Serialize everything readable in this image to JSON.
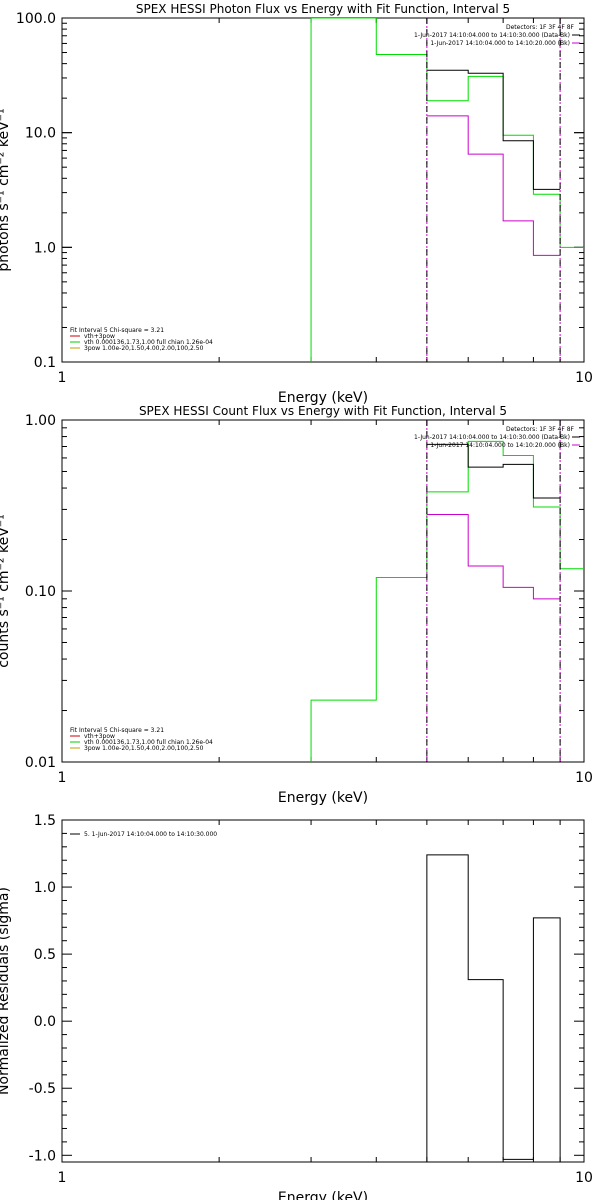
{
  "chart_data": [
    {
      "type": "line",
      "title": "SPEX HESSI Photon Flux vs Energy with Fit Function, Interval 5",
      "xlabel": "Energy (keV)",
      "ylabel": "photons s⁻¹ cm⁻² keV⁻¹",
      "xscale": "log",
      "yscale": "log",
      "xlim": [
        1,
        10
      ],
      "ylim": [
        0.1,
        100
      ],
      "x_ticks": [
        "1",
        "10"
      ],
      "y_ticks": [
        "0.1",
        "1.0",
        "10.0",
        "100.0"
      ],
      "y_tick_values": [
        0.1,
        1,
        10,
        100
      ],
      "legend_right": {
        "header": "Detectors: 1F 3F 4F 8F",
        "entries": [
          {
            "label": "1-Jun-2017 14:10:04.000 to 14:10:30.000 (Data-Bk)",
            "color": "#000000"
          },
          {
            "label": "1-Jun-2017 14:10:04.000 to 14:10:20.000 (Bk)",
            "color": "#cc00cc"
          }
        ]
      },
      "legend_left": {
        "header": "Fit Interval 5   Chi-square = 3.21",
        "entries": [
          {
            "label": "vth+3pow",
            "color": "#cc0000"
          },
          {
            "label": "vth 0.000136,1.73,1.00  full chian 1.26e-04",
            "color": "#00cc00"
          },
          {
            "label": "3pow 1.00e-20,1.50,4.00,2.00,100,2.50",
            "color": "#cc9900"
          }
        ]
      },
      "vlines": [
        5.0,
        9.0
      ],
      "series": [
        {
          "name": "vth",
          "color": "#00dd00",
          "drop_to_bottom": true,
          "edges": [
            3.0,
            4.0,
            5.0,
            6.0,
            7.0,
            8.0,
            9.0,
            10.0
          ],
          "values": [
            120,
            48,
            19,
            31,
            9.5,
            2.9,
            1.0
          ]
        },
        {
          "name": "Data-Bk",
          "color": "#000000",
          "edges": [
            5.0,
            6.0,
            7.0,
            8.0,
            9.0
          ],
          "values": [
            35,
            33,
            8.5,
            3.2
          ]
        },
        {
          "name": "Bk",
          "color": "#cc00cc",
          "edges": [
            5.0,
            6.0,
            7.0,
            8.0,
            9.0
          ],
          "values": [
            14,
            6.5,
            1.7,
            0.85
          ]
        }
      ]
    },
    {
      "type": "line",
      "title": "SPEX HESSI Count Flux vs Energy with Fit Function, Interval 5",
      "xlabel": "Energy (keV)",
      "ylabel": "counts s⁻¹ cm⁻² keV⁻¹",
      "xscale": "log",
      "yscale": "log",
      "xlim": [
        1,
        10
      ],
      "ylim": [
        0.01,
        1
      ],
      "x_ticks": [
        "1",
        "10"
      ],
      "y_ticks": [
        "0.01",
        "0.10",
        "1.00"
      ],
      "y_tick_values": [
        0.01,
        0.1,
        1
      ],
      "legend_right": {
        "header": "Detectors: 1F 3F 4F 8F",
        "entries": [
          {
            "label": "1-Jun-2017 14:10:04.000 to 14:10:30.000 (Data-Bk)",
            "color": "#000000"
          },
          {
            "label": "1-Jun-2017 14:10:04.000 to 14:10:20.000 (Bk)",
            "color": "#cc00cc"
          }
        ]
      },
      "legend_left": {
        "header": "Fit Interval 5   Chi-square = 3.21",
        "entries": [
          {
            "label": "vth+3pow",
            "color": "#cc0000"
          },
          {
            "label": "vth 0.000136,1.73,1.00  full chian 1.26e-04",
            "color": "#00cc00"
          },
          {
            "label": "3pow 1.00e-20,1.50,4.00,2.00,100,2.50",
            "color": "#cc9900"
          }
        ]
      },
      "vlines": [
        5.0,
        9.0
      ],
      "series": [
        {
          "name": "vth",
          "color": "#00dd00",
          "drop_to_bottom": true,
          "edges": [
            3.0,
            3.5,
            4.0,
            5.0,
            6.0,
            7.0,
            8.0,
            9.0,
            10.0
          ],
          "values": [
            0.023,
            0.023,
            0.12,
            0.38,
            0.75,
            0.62,
            0.31,
            0.135
          ]
        },
        {
          "name": "Data-Bk",
          "color": "#000000",
          "edges": [
            5.0,
            6.0,
            7.0,
            8.0,
            9.0
          ],
          "values": [
            0.72,
            0.53,
            0.55,
            0.35
          ]
        },
        {
          "name": "Bk",
          "color": "#cc00cc",
          "edges": [
            5.0,
            6.0,
            7.0,
            8.0,
            9.0
          ],
          "values": [
            0.28,
            0.14,
            0.105,
            0.09
          ]
        }
      ]
    },
    {
      "type": "line",
      "title": "",
      "xlabel": "Energy (keV)",
      "ylabel": "Normalized Residuals (sigma)",
      "xscale": "log",
      "yscale": "linear",
      "xlim": [
        1,
        10
      ],
      "ylim": [
        -1.05,
        1.5
      ],
      "x_ticks": [
        "1",
        "10"
      ],
      "y_ticks": [
        "-1.0",
        "-0.5",
        "0.0",
        "0.5",
        "1.0",
        "1.5"
      ],
      "y_tick_values": [
        -1.0,
        -0.5,
        0.0,
        0.5,
        1.0,
        1.5
      ],
      "legend_left": {
        "header": "",
        "entries": [
          {
            "label": "5. 1-Jun-2017 14:10:04.000 to 14:10:30.000",
            "color": "#000000"
          }
        ]
      },
      "series": [
        {
          "name": "residuals",
          "color": "#000000",
          "edges": [
            5.0,
            6.0,
            7.0,
            8.0,
            9.0
          ],
          "values": [
            1.24,
            0.31,
            -1.03,
            0.77
          ]
        }
      ]
    }
  ]
}
